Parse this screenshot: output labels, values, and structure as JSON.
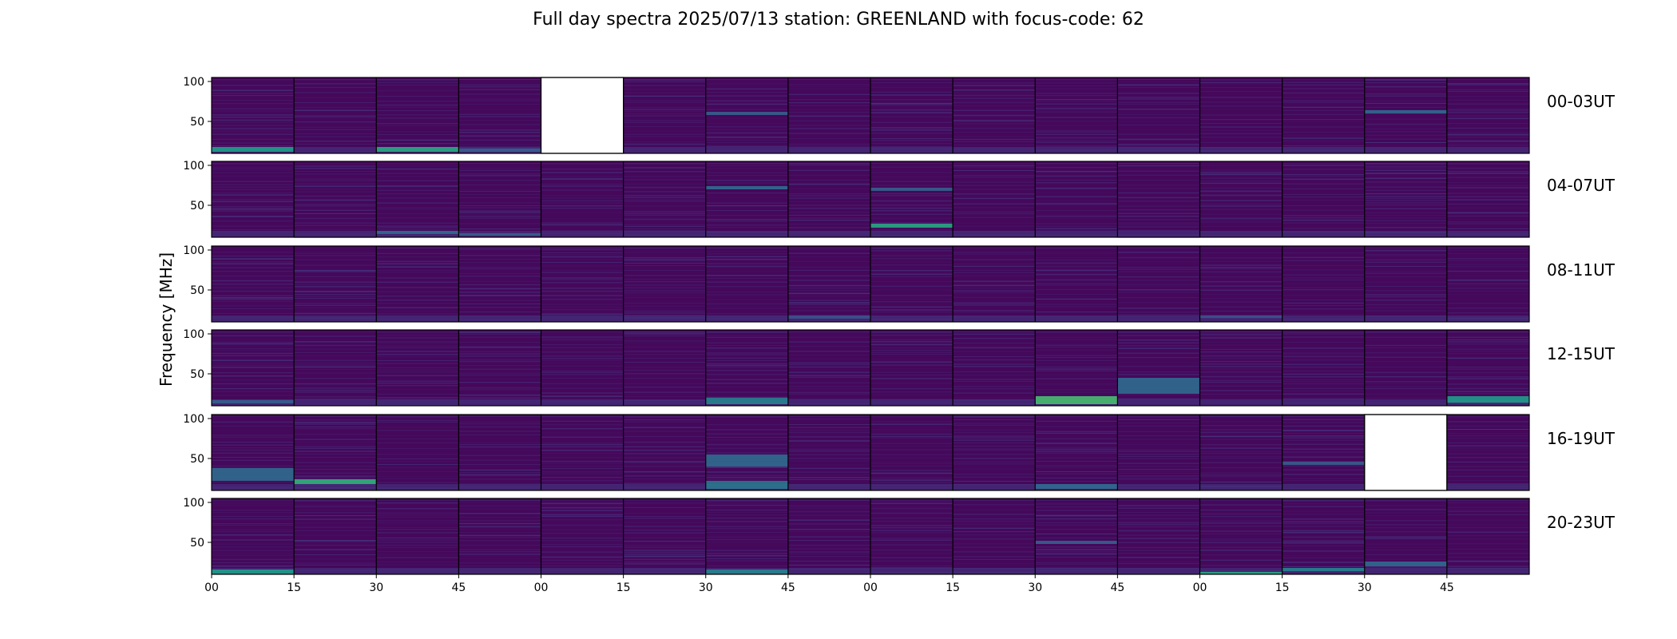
{
  "title": "Full day spectra 2025/07/13 station: GREENLAND with focus-code: 62",
  "chart_data": {
    "type": "heatmap",
    "title": "Full day spectra 2025/07/13 station: GREENLAND with focus-code: 62",
    "ylabel": "Frequency [MHz]",
    "xlabel": "",
    "y_ticks": [
      "50",
      "100"
    ],
    "ylim": [
      10,
      105
    ],
    "x_ticks": [
      "00",
      "15",
      "30",
      "45",
      "00",
      "15",
      "30",
      "45",
      "00",
      "15",
      "30",
      "45",
      "00",
      "15",
      "30",
      "45"
    ],
    "colormap": "viridis",
    "rows": [
      {
        "label": "00-03UT",
        "missing_panels": [
          4
        ],
        "bright_features": [
          {
            "panel": 0,
            "freq": [
              12,
              18
            ],
            "level": 0.55
          },
          {
            "panel": 2,
            "freq": [
              12,
              18
            ],
            "level": 0.6
          },
          {
            "panel": 3,
            "freq": [
              12,
              16
            ],
            "level": 0.3
          },
          {
            "panel": 14,
            "freq": [
              60,
              64
            ],
            "level": 0.35
          },
          {
            "panel": 6,
            "freq": [
              58,
              62
            ],
            "level": 0.3
          }
        ]
      },
      {
        "label": "04-07UT",
        "missing_panels": [],
        "bright_features": [
          {
            "panel": 8,
            "freq": [
              22,
              27
            ],
            "level": 0.6
          },
          {
            "panel": 2,
            "freq": [
              14,
              18
            ],
            "level": 0.35
          },
          {
            "panel": 6,
            "freq": [
              70,
              74
            ],
            "level": 0.35
          },
          {
            "panel": 3,
            "freq": [
              12,
              15
            ],
            "level": 0.3
          },
          {
            "panel": 8,
            "freq": [
              68,
              72
            ],
            "level": 0.3
          }
        ]
      },
      {
        "label": "08-11UT",
        "missing_panels": [],
        "bright_features": [
          {
            "panel": 7,
            "freq": [
              14,
              18
            ],
            "level": 0.25
          },
          {
            "panel": 12,
            "freq": [
              15,
              18
            ],
            "level": 0.25
          }
        ]
      },
      {
        "label": "12-15UT",
        "missing_panels": [],
        "bright_features": [
          {
            "panel": 10,
            "freq": [
              12,
              22
            ],
            "level": 0.7
          },
          {
            "panel": 15,
            "freq": [
              14,
              22
            ],
            "level": 0.55
          },
          {
            "panel": 6,
            "freq": [
              12,
              20
            ],
            "level": 0.45
          },
          {
            "panel": 11,
            "freq": [
              25,
              45
            ],
            "level": 0.35
          },
          {
            "panel": 0,
            "freq": [
              13,
              17
            ],
            "level": 0.3
          }
        ]
      },
      {
        "label": "16-19UT",
        "missing_panels": [
          14
        ],
        "bright_features": [
          {
            "panel": 0,
            "freq": [
              22,
              38
            ],
            "level": 0.35
          },
          {
            "panel": 1,
            "freq": [
              18,
              24
            ],
            "level": 0.65
          },
          {
            "panel": 6,
            "freq": [
              40,
              55
            ],
            "level": 0.35
          },
          {
            "panel": 6,
            "freq": [
              12,
              22
            ],
            "level": 0.4
          },
          {
            "panel": 10,
            "freq": [
              12,
              18
            ],
            "level": 0.35
          },
          {
            "panel": 13,
            "freq": [
              42,
              46
            ],
            "level": 0.3
          }
        ]
      },
      {
        "label": "20-23UT",
        "missing_panels": [],
        "bright_features": [
          {
            "panel": 0,
            "freq": [
              10,
              16
            ],
            "level": 0.55
          },
          {
            "panel": 6,
            "freq": [
              10,
              16
            ],
            "level": 0.45
          },
          {
            "panel": 12,
            "freq": [
              10,
              13
            ],
            "level": 0.6
          },
          {
            "panel": 13,
            "freq": [
              14,
              18
            ],
            "level": 0.45
          },
          {
            "panel": 14,
            "freq": [
              20,
              26
            ],
            "level": 0.35
          },
          {
            "panel": 10,
            "freq": [
              48,
              52
            ],
            "level": 0.3
          }
        ]
      }
    ]
  }
}
